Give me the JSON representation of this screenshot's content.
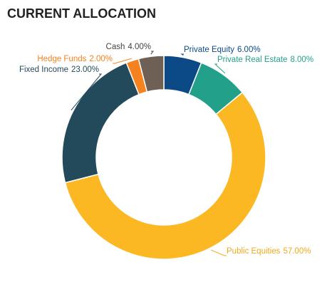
{
  "chart_data": {
    "type": "pie",
    "title": "CURRENT ALLOCATION",
    "categories": [
      "Private Equity",
      "Private Real Estate",
      "Public Equities",
      "Fixed Income",
      "Hedge Funds",
      "Cash"
    ],
    "values": [
      6,
      8,
      57,
      23,
      2,
      4
    ],
    "value_labels": [
      "6.00%",
      "8.00%",
      "57.00%",
      "23.00%",
      "2.00%",
      "4.00%"
    ],
    "colors": [
      "#0b4a86",
      "#23a08a",
      "#fcb823",
      "#234a5a",
      "#f5821f",
      "#6e6055"
    ],
    "label_colors": [
      "#0b4a86",
      "#23a08a",
      "#f0a91c",
      "#234a5a",
      "#f5821f",
      "#444444"
    ]
  }
}
